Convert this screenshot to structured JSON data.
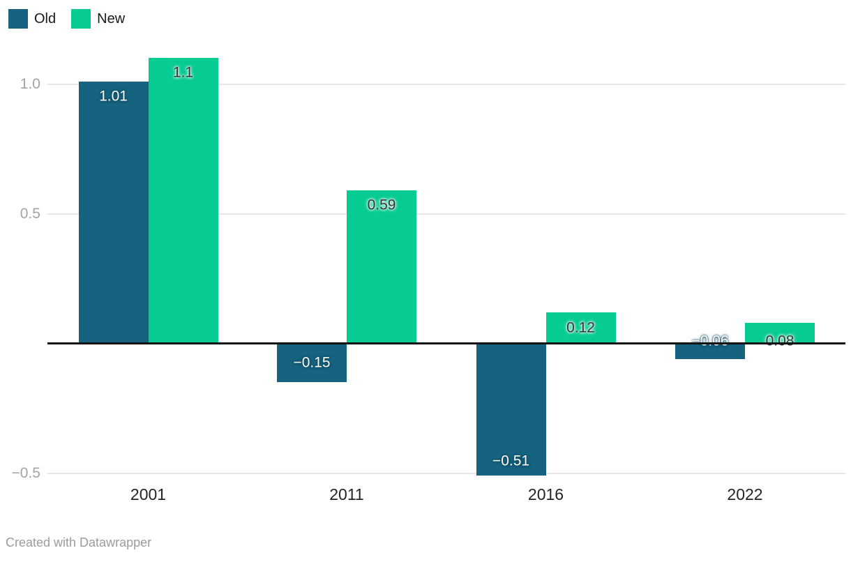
{
  "legend": {
    "position": "top-left"
  },
  "chart_data": {
    "type": "bar",
    "categories": [
      "2001",
      "2011",
      "2016",
      "2022"
    ],
    "series": [
      {
        "name": "Old",
        "color": "#15637e",
        "values": [
          1.01,
          -0.15,
          -0.51,
          -0.06
        ],
        "labels": [
          "1.01",
          "−0.15",
          "−0.51",
          "−0.06"
        ],
        "label_style": "light"
      },
      {
        "name": "New",
        "color": "#06cb92",
        "values": [
          1.1,
          0.59,
          0.12,
          0.08
        ],
        "labels": [
          "1.1",
          "0.59",
          "0.12",
          "0.08"
        ],
        "label_style": "dark"
      }
    ],
    "title": "",
    "xlabel": "",
    "ylabel": "",
    "y_axis": {
      "ticks": [
        {
          "value": 1.0,
          "label": "1.0"
        },
        {
          "value": 0.5,
          "label": "0.5"
        },
        {
          "value": -0.5,
          "label": "−0.5"
        }
      ],
      "range": [
        -0.55,
        1.16
      ]
    },
    "grid": true,
    "baseline_value": 0,
    "legend_position": "top-left"
  },
  "footer": {
    "text": "Created with Datawrapper"
  }
}
